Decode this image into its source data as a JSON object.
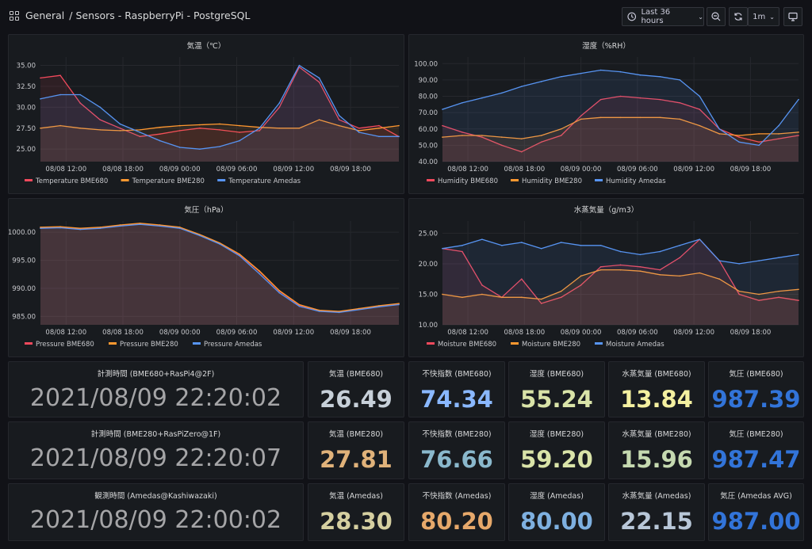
{
  "header": {
    "crumb_root": "General",
    "crumb_path": "/ Sensors - RaspberryPi - PostgreSQL",
    "time_range": "Last 36 hours",
    "refresh": "1m"
  },
  "charts": [
    {
      "title": "気温（℃）",
      "yticks": [
        "35.00",
        "32.50",
        "30.00",
        "27.50",
        "25.00"
      ],
      "ymin": 23.5,
      "ymax": 36,
      "xticks": [
        "08/08 12:00",
        "08/08 18:00",
        "08/09 00:00",
        "08/09 06:00",
        "08/09 12:00",
        "08/09 18:00"
      ],
      "legend": [
        "Temperature BME680",
        "Temperature BME280",
        "Temperature Amedas"
      ]
    },
    {
      "title": "湿度（%RH）",
      "yticks": [
        "100.00",
        "90.00",
        "80.00",
        "70.00",
        "60.00",
        "50.00",
        "40.00"
      ],
      "ymin": 40,
      "ymax": 104,
      "xticks": [
        "08/08 12:00",
        "08/08 18:00",
        "08/09 00:00",
        "08/09 06:00",
        "08/09 12:00",
        "08/09 18:00"
      ],
      "legend": [
        "Humidity BME680",
        "Humidity BME280",
        "Humidity Amedas"
      ]
    },
    {
      "title": "気圧（hPa）",
      "yticks": [
        "1000.00",
        "995.00",
        "990.00",
        "985.00"
      ],
      "ymin": 983.5,
      "ymax": 1002,
      "xticks": [
        "08/08 12:00",
        "08/08 18:00",
        "08/09 00:00",
        "08/09 06:00",
        "08/09 12:00",
        "08/09 18:00"
      ],
      "legend": [
        "Pressure BME680",
        "Pressure BME280",
        "Pressure Amedas"
      ]
    },
    {
      "title": "水蒸気量（g/m3）",
      "yticks": [
        "25.00",
        "20.00",
        "15.00",
        "10.00"
      ],
      "ymin": 10,
      "ymax": 27,
      "xticks": [
        "08/08 12:00",
        "08/08 18:00",
        "08/09 00:00",
        "08/09 06:00",
        "08/09 12:00",
        "08/09 18:00"
      ],
      "legend": [
        "Moisture BME680",
        "Moisture BME280",
        "Moisture Amedas"
      ]
    }
  ],
  "chart_data": [
    {
      "type": "line",
      "title": "気温（℃）",
      "x": [
        0,
        1,
        2,
        3,
        4,
        5,
        6,
        7,
        8,
        9,
        10,
        11,
        12,
        13,
        14,
        15,
        16,
        17,
        18
      ],
      "series": [
        {
          "name": "Temperature BME680",
          "color": "#f2495c",
          "values": [
            33.5,
            33.8,
            30.5,
            28.5,
            27.5,
            26.5,
            26.8,
            27.2,
            27.5,
            27.3,
            27.0,
            27.2,
            30.0,
            34.8,
            33.0,
            28.5,
            27.5,
            27.8,
            26.5
          ]
        },
        {
          "name": "Temperature BME280",
          "color": "#ff9830",
          "values": [
            27.5,
            27.8,
            27.5,
            27.3,
            27.2,
            27.3,
            27.6,
            27.8,
            27.9,
            28.0,
            27.8,
            27.6,
            27.5,
            27.5,
            28.5,
            27.8,
            27.2,
            27.5,
            27.8
          ]
        },
        {
          "name": "Temperature Amedas",
          "color": "#5794f2",
          "values": [
            31.0,
            31.5,
            31.5,
            30.0,
            28.0,
            27.0,
            26.0,
            25.2,
            25.0,
            25.3,
            26.0,
            27.5,
            30.5,
            35.0,
            33.5,
            29.0,
            27.0,
            26.5,
            26.5
          ]
        }
      ]
    },
    {
      "type": "line",
      "title": "湿度（%RH）",
      "x": [
        0,
        1,
        2,
        3,
        4,
        5,
        6,
        7,
        8,
        9,
        10,
        11,
        12,
        13,
        14,
        15,
        16,
        17,
        18
      ],
      "series": [
        {
          "name": "Humidity BME680",
          "color": "#f2495c",
          "values": [
            62,
            58,
            55,
            50,
            46,
            52,
            56,
            68,
            78,
            80,
            79,
            78,
            76,
            72,
            60,
            55,
            52,
            54,
            56
          ]
        },
        {
          "name": "Humidity BME280",
          "color": "#ff9830",
          "values": [
            55,
            56,
            56,
            55,
            54,
            56,
            60,
            66,
            67,
            67,
            67,
            67,
            66,
            62,
            57,
            56,
            57,
            57,
            58
          ]
        },
        {
          "name": "Humidity Amedas",
          "color": "#5794f2",
          "values": [
            72,
            76,
            79,
            82,
            86,
            89,
            92,
            94,
            96,
            95,
            93,
            92,
            90,
            80,
            60,
            52,
            50,
            62,
            78
          ]
        }
      ]
    },
    {
      "type": "area",
      "title": "気圧（hPa）",
      "x": [
        0,
        1,
        2,
        3,
        4,
        5,
        6,
        7,
        8,
        9,
        10,
        11,
        12,
        13,
        14,
        15,
        16,
        17,
        18
      ],
      "series": [
        {
          "name": "Pressure BME680",
          "color": "#f2495c",
          "values": [
            1000.8,
            1000.9,
            1000.6,
            1000.8,
            1001.2,
            1001.5,
            1001.2,
            1000.8,
            999.5,
            998.0,
            996.0,
            993.0,
            989.5,
            987.0,
            986.0,
            985.8,
            986.3,
            986.8,
            987.2
          ]
        },
        {
          "name": "Pressure BME280",
          "color": "#ff9830",
          "values": [
            1000.9,
            1001.0,
            1000.7,
            1000.9,
            1001.3,
            1001.6,
            1001.3,
            1000.9,
            999.6,
            998.1,
            996.1,
            993.1,
            989.6,
            987.1,
            986.1,
            985.9,
            986.4,
            986.9,
            987.3
          ]
        },
        {
          "name": "Pressure Amedas",
          "color": "#5794f2",
          "values": [
            1000.7,
            1000.8,
            1000.5,
            1000.7,
            1001.1,
            1001.4,
            1001.1,
            1000.7,
            999.4,
            997.9,
            995.8,
            992.6,
            989.2,
            986.8,
            985.9,
            985.7,
            986.2,
            986.7,
            987.1
          ]
        }
      ]
    },
    {
      "type": "line",
      "title": "水蒸気量（g/m3）",
      "x": [
        0,
        1,
        2,
        3,
        4,
        5,
        6,
        7,
        8,
        9,
        10,
        11,
        12,
        13,
        14,
        15,
        16,
        17,
        18
      ],
      "series": [
        {
          "name": "Moisture BME680",
          "color": "#f2495c",
          "values": [
            22.5,
            22.0,
            16.5,
            14.5,
            17.5,
            13.5,
            14.5,
            16.5,
            19.5,
            19.8,
            19.5,
            19.0,
            21.0,
            24.0,
            20.5,
            15.0,
            14.0,
            14.5,
            14.0
          ]
        },
        {
          "name": "Moisture BME280",
          "color": "#ff9830",
          "values": [
            15.0,
            14.5,
            15.0,
            14.5,
            14.5,
            14.2,
            15.5,
            18.0,
            19.0,
            19.0,
            18.8,
            18.2,
            18.0,
            18.5,
            17.5,
            15.5,
            15.0,
            15.5,
            15.8
          ]
        },
        {
          "name": "Moisture Amedas",
          "color": "#5794f2",
          "values": [
            22.5,
            23.0,
            24.0,
            23.0,
            23.5,
            22.5,
            23.5,
            23.0,
            23.0,
            22.0,
            21.5,
            22.0,
            23.0,
            24.0,
            20.5,
            20.0,
            20.5,
            21.0,
            21.5
          ]
        }
      ]
    }
  ],
  "stats": [
    {
      "title": "計測時間 (BME680+RasPi4@2F)",
      "value": "2021/08/09 22:20:02",
      "color": "#a5a5a7"
    },
    {
      "title": "気温 (BME680)",
      "value": "26.49",
      "color": "#c7d0d9"
    },
    {
      "title": "不快指数 (BME680)",
      "value": "74.34",
      "color": "#8ab8ff"
    },
    {
      "title": "湿度 (BME680)",
      "value": "55.24",
      "color": "#d9e3a8"
    },
    {
      "title": "水蒸気量 (BME680)",
      "value": "13.84",
      "color": "#f4f0a0"
    },
    {
      "title": "気圧 (BME680)",
      "value": "987.39",
      "color": "#3274d9"
    },
    {
      "title": "計測時間 (BME280+RasPiZero@1F)",
      "value": "2021/08/09 22:20:07",
      "color": "#a5a5a7"
    },
    {
      "title": "気温 (BME280)",
      "value": "27.81",
      "color": "#e0b27a"
    },
    {
      "title": "不快指数 (BME280)",
      "value": "76.66",
      "color": "#8ab8cc"
    },
    {
      "title": "湿度 (BME280)",
      "value": "59.20",
      "color": "#d9e3a8"
    },
    {
      "title": "水蒸気量 (BME280)",
      "value": "15.96",
      "color": "#c5d9b0"
    },
    {
      "title": "気圧 (BME280)",
      "value": "987.47",
      "color": "#3274d9"
    },
    {
      "title": "観測時間 (Amedas@Kashiwazaki)",
      "value": "2021/08/09 22:00:02",
      "color": "#a5a5a7"
    },
    {
      "title": "気温 (Amedas)",
      "value": "28.30",
      "color": "#d5cfa0"
    },
    {
      "title": "不快指数 (Amedas)",
      "value": "80.20",
      "color": "#e6a86a"
    },
    {
      "title": "湿度 (Amedas)",
      "value": "80.00",
      "color": "#7eb0e0"
    },
    {
      "title": "水蒸気量 (Amedas)",
      "value": "22.15",
      "color": "#b8c7d8"
    },
    {
      "title": "気圧 (Amedas AVG)",
      "value": "987.00",
      "color": "#3274d9"
    }
  ]
}
